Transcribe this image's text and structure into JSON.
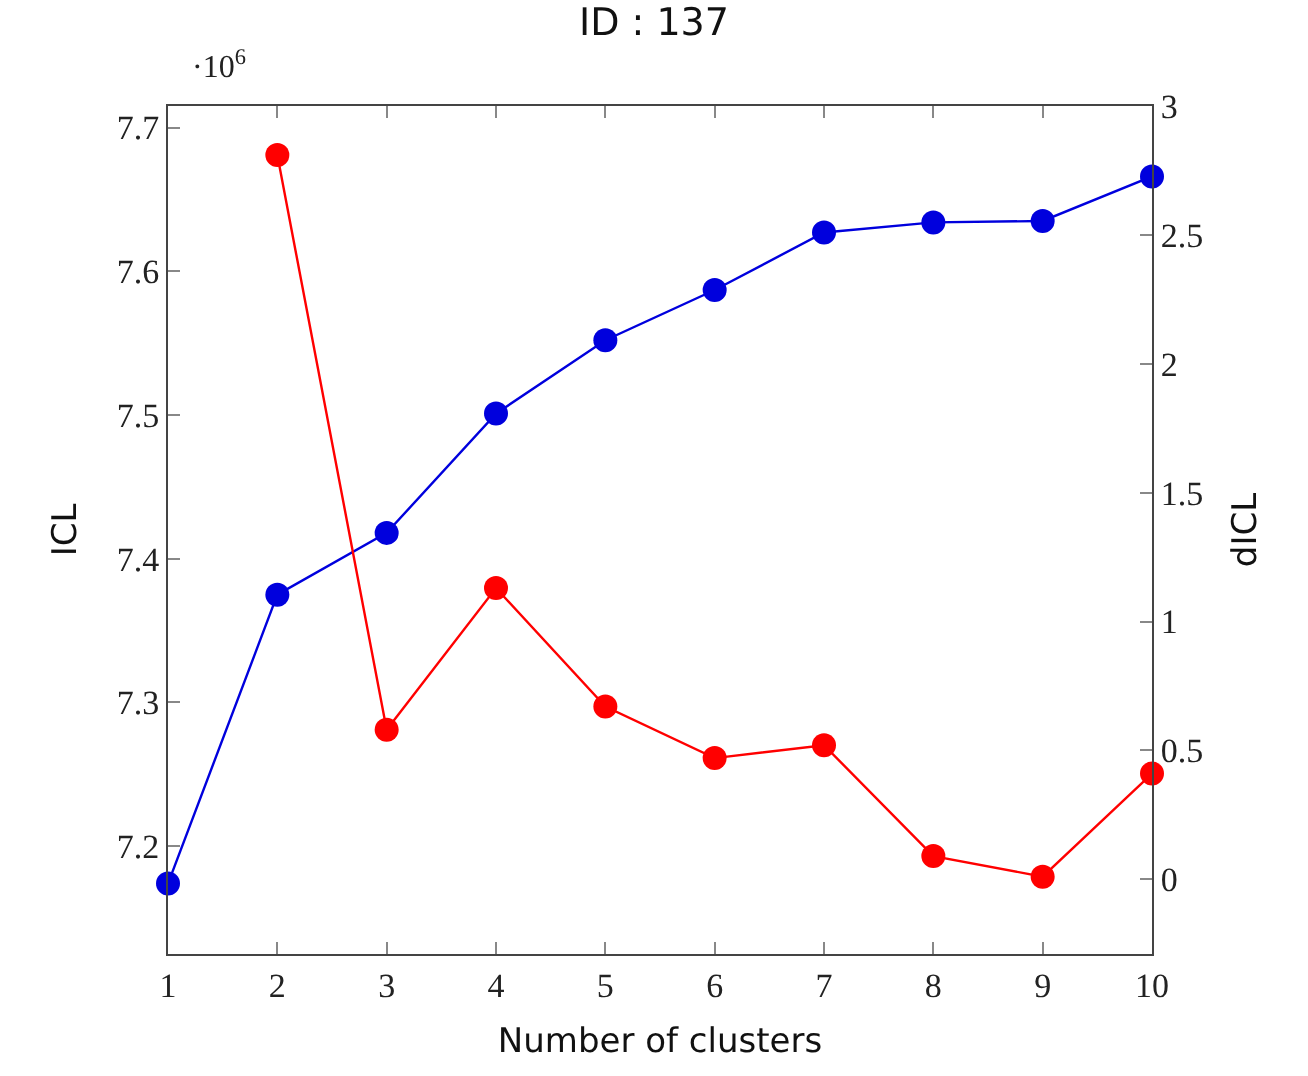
{
  "chart_data": {
    "type": "line",
    "title": "ID : 137",
    "xlabel": "Number of clusters",
    "ylabel": "ICL",
    "y2label": "dICL",
    "annotations": [
      "·10$^{6}$"
    ],
    "x": [
      1,
      2,
      3,
      4,
      5,
      6,
      7,
      8,
      9,
      10
    ],
    "series": [
      {
        "color": "#0000dd",
        "values": [
          7.174,
          7.375,
          7.418,
          7.501,
          7.552,
          7.587,
          7.627,
          7.634,
          7.635,
          7.666
        ]
      },
      {
        "color": "#ff0000",
        "axis": "y2",
        "values": [
          null,
          2.81,
          0.58,
          1.13,
          0.67,
          0.47,
          0.52,
          0.09,
          0.01,
          0.41
        ]
      }
    ],
    "xlim": [
      1,
      10
    ],
    "xticks": [
      1,
      2,
      3,
      4,
      5,
      6,
      7,
      8,
      9,
      10
    ],
    "ylim": [
      7.125,
      7.715
    ],
    "yticks": [
      7.2,
      7.3,
      7.4,
      7.5,
      7.6,
      7.7
    ],
    "y2lim": [
      -0.29,
      3.0
    ],
    "y2ticks": [
      0,
      0.5,
      1,
      1.5,
      2,
      2.5,
      3
    ],
    "marker": "circle",
    "line_style": "solid"
  }
}
